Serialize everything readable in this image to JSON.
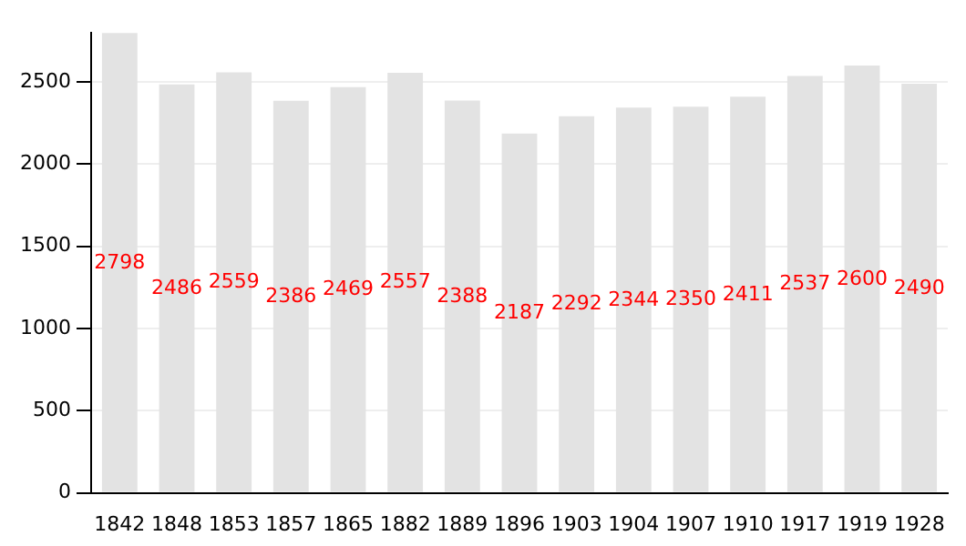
{
  "chart_data": {
    "type": "bar",
    "categories": [
      "1842",
      "1848",
      "1853",
      "1857",
      "1865",
      "1882",
      "1889",
      "1896",
      "1903",
      "1904",
      "1907",
      "1910",
      "1917",
      "1919",
      "1928"
    ],
    "values": [
      2798,
      2486,
      2559,
      2386,
      2469,
      2557,
      2388,
      2187,
      2292,
      2344,
      2350,
      2411,
      2537,
      2600,
      2490
    ],
    "color": "#e3e3e3",
    "ylim": [
      0,
      2800
    ],
    "yticks": [
      0,
      500,
      1000,
      1500,
      2000,
      2500
    ],
    "grid": "y",
    "data_labels": true
  }
}
